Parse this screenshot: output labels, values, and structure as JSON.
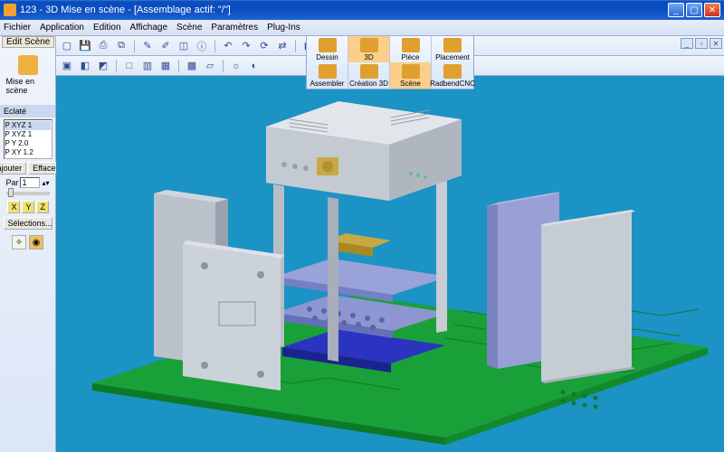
{
  "title": "123 - 3D Mise en scène - [Assemblage actif: \"/\"]",
  "menu": [
    "Fichier",
    "Application",
    "Edition",
    "Affichage",
    "Scène",
    "Paramètres",
    "Plug-Ins"
  ],
  "edit_scene_label": "Edit Scène",
  "toolbar1": [
    {
      "n": "new-icon",
      "g": "▢"
    },
    {
      "n": "save-icon",
      "g": "💾"
    },
    {
      "n": "print-icon",
      "g": "⎙"
    },
    {
      "n": "copy-icon",
      "g": "⧉"
    },
    {
      "sep": true
    },
    {
      "n": "pencil-icon",
      "g": "✎"
    },
    {
      "n": "brush-icon",
      "g": "✐"
    },
    {
      "n": "eraser-icon",
      "g": "◫"
    },
    {
      "n": "info-icon",
      "g": "ⓘ"
    },
    {
      "sep": true
    },
    {
      "n": "undo-icon",
      "g": "↶"
    },
    {
      "n": "redo-icon",
      "g": "↷"
    },
    {
      "n": "refresh-icon",
      "g": "⟳"
    },
    {
      "n": "link-icon",
      "g": "⇄"
    },
    {
      "sep": true
    },
    {
      "n": "play-icon",
      "g": "▶"
    },
    {
      "n": "rec-icon",
      "g": "●"
    }
  ],
  "toolbar2": [
    {
      "n": "cube-icon",
      "g": "▣"
    },
    {
      "n": "view-icon",
      "g": "◧"
    },
    {
      "n": "cam-icon",
      "g": "◩"
    },
    {
      "sep": true
    },
    {
      "n": "box1-icon",
      "g": "□"
    },
    {
      "n": "box2-icon",
      "g": "▥"
    },
    {
      "n": "box3-icon",
      "g": "▦"
    },
    {
      "sep": true
    },
    {
      "n": "face-icon",
      "g": "▩"
    },
    {
      "n": "edge-icon",
      "g": "▱"
    },
    {
      "sep": true
    },
    {
      "n": "light-icon",
      "g": "☼"
    },
    {
      "n": "shade-icon",
      "g": "◐"
    }
  ],
  "sidebar": {
    "top_btn": {
      "label": "Mise en scène"
    },
    "eclate_label": "Eclaté",
    "list": [
      "P XYZ 1",
      "P XYZ 1",
      "P  Y  2.0",
      "P XY  1.2"
    ],
    "add": "ajouter",
    "del": "Effacer",
    "par_label": "Par",
    "par_val": "1",
    "axes": [
      "X",
      "Y",
      "Z"
    ],
    "sel": "Sélections..."
  },
  "ribbon": {
    "row1": [
      {
        "l": "Dessin"
      },
      {
        "l": "3D",
        "active": true
      },
      {
        "l": "Pièce"
      },
      {
        "l": "Placement"
      }
    ],
    "row2": [
      {
        "l": "Assembler"
      },
      {
        "l": "Création 3D"
      },
      {
        "l": "Scène",
        "active": true
      },
      {
        "l": "RadbendCNC"
      }
    ]
  },
  "colors": {
    "viewport_bg": "#1b93c4",
    "board": "#1aa038",
    "board_dark": "#0c7a24",
    "metal_light": "#d8dce2",
    "metal_mid": "#b8bec8",
    "metal_dark": "#8a94a4",
    "panel_blue": "#8e96d2",
    "panel_blue_d": "#6570b8",
    "deep_blue": "#2a34c0",
    "gold": "#c8a840"
  }
}
